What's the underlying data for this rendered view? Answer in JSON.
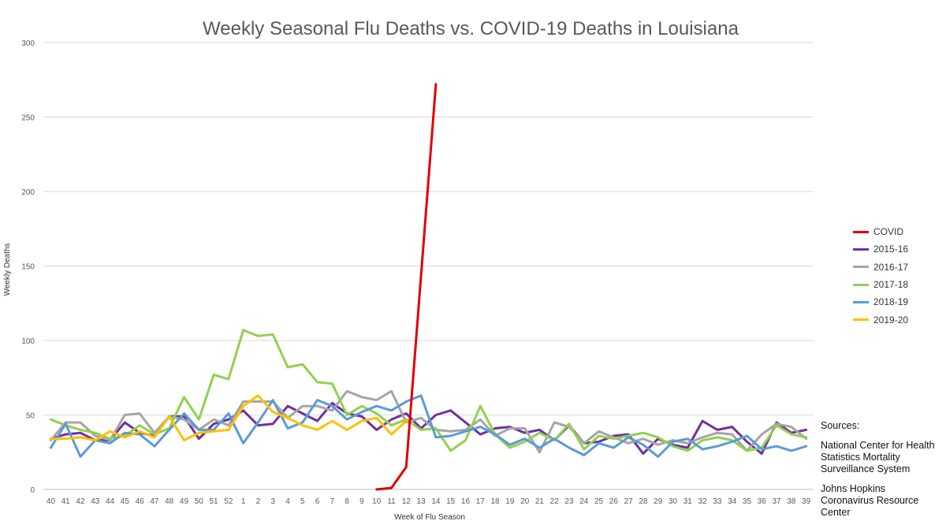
{
  "chart_data": {
    "type": "line",
    "title": "Weekly Seasonal Flu Deaths vs. COVID-19 Deaths in Louisiana",
    "xlabel": "Week of Flu Season",
    "ylabel": "Weekly Deaths",
    "ylim": [
      0,
      300
    ],
    "yticks": [
      0,
      50,
      100,
      150,
      200,
      250,
      300
    ],
    "grid": true,
    "legend_position": "right",
    "categories": [
      "40",
      "41",
      "42",
      "43",
      "44",
      "45",
      "46",
      "47",
      "48",
      "49",
      "50",
      "51",
      "52",
      "1",
      "2",
      "3",
      "4",
      "5",
      "6",
      "7",
      "8",
      "9",
      "10",
      "11",
      "12",
      "13",
      "14",
      "15",
      "16",
      "17",
      "18",
      "19",
      "20",
      "21",
      "22",
      "23",
      "24",
      "25",
      "26",
      "27",
      "28",
      "29",
      "30",
      "31",
      "32",
      "33",
      "34",
      "35",
      "36",
      "37",
      "38",
      "39"
    ],
    "series": [
      {
        "name": "COVID",
        "color": "#e00000",
        "values": [
          null,
          null,
          null,
          null,
          null,
          null,
          null,
          null,
          null,
          null,
          null,
          null,
          null,
          null,
          null,
          null,
          null,
          null,
          null,
          null,
          null,
          null,
          0,
          1,
          15,
          null,
          272,
          null,
          null,
          null,
          null,
          null,
          null,
          null,
          null,
          null,
          null,
          null,
          null,
          null,
          null,
          null,
          null,
          null,
          null,
          null,
          null,
          null,
          null,
          null,
          null,
          null
        ]
      },
      {
        "name": "2015-16",
        "color": "#7030a0",
        "values": [
          34,
          37,
          38,
          33,
          33,
          45,
          38,
          36,
          49,
          49,
          34,
          44,
          47,
          53,
          43,
          44,
          56,
          51,
          46,
          58,
          51,
          49,
          40,
          47,
          51,
          41,
          50,
          53,
          45,
          37,
          41,
          42,
          38,
          40,
          33,
          43,
          31,
          32,
          36,
          37,
          24,
          34,
          30,
          28,
          46,
          40,
          42,
          32,
          24,
          45,
          38,
          40
        ]
      },
      {
        "name": "2016-17",
        "color": "#a5a5a5",
        "values": [
          33,
          45,
          45,
          36,
          33,
          50,
          51,
          38,
          49,
          47,
          40,
          47,
          43,
          59,
          59,
          59,
          48,
          56,
          56,
          53,
          66,
          62,
          60,
          66,
          45,
          48,
          40,
          39,
          40,
          47,
          36,
          41,
          41,
          25,
          45,
          42,
          31,
          39,
          35,
          31,
          34,
          30,
          33,
          31,
          35,
          38,
          37,
          26,
          37,
          44,
          42,
          34
        ]
      },
      {
        "name": "2017-18",
        "color": "#92d050",
        "values": [
          47,
          43,
          40,
          38,
          34,
          36,
          43,
          37,
          41,
          62,
          47,
          77,
          74,
          107,
          103,
          104,
          82,
          84,
          72,
          71,
          50,
          56,
          51,
          43,
          47,
          40,
          41,
          26,
          33,
          56,
          37,
          28,
          32,
          38,
          33,
          44,
          27,
          36,
          34,
          36,
          38,
          35,
          29,
          26,
          33,
          35,
          33,
          26,
          28,
          43,
          37,
          35
        ]
      },
      {
        "name": "2018-19",
        "color": "#5b9bd5",
        "values": [
          28,
          44,
          22,
          33,
          31,
          38,
          37,
          29,
          40,
          51,
          40,
          40,
          51,
          31,
          45,
          60,
          41,
          45,
          60,
          56,
          47,
          52,
          56,
          53,
          59,
          63,
          35,
          36,
          39,
          42,
          37,
          30,
          34,
          28,
          34,
          28,
          23,
          31,
          28,
          35,
          30,
          22,
          32,
          34,
          27,
          29,
          32,
          36,
          27,
          29,
          26,
          29
        ]
      },
      {
        "name": "2019-20",
        "color": "#ffc000",
        "values": [
          34,
          34,
          35,
          33,
          39,
          35,
          39,
          35,
          49,
          33,
          38,
          39,
          40,
          56,
          63,
          52,
          48,
          43,
          40,
          46,
          40,
          46,
          48,
          37,
          46,
          null,
          null,
          null,
          null,
          null,
          null,
          null,
          null,
          null,
          null,
          null,
          null,
          null,
          null,
          null,
          null,
          null,
          null,
          null,
          null,
          null,
          null,
          null,
          null,
          null,
          null,
          null
        ]
      }
    ]
  },
  "sources": {
    "heading": "Sources:",
    "items": [
      "National Center for Health Statistics Mortality Surveillance System",
      "Johns Hopkins Coronavirus Resource Center"
    ]
  }
}
